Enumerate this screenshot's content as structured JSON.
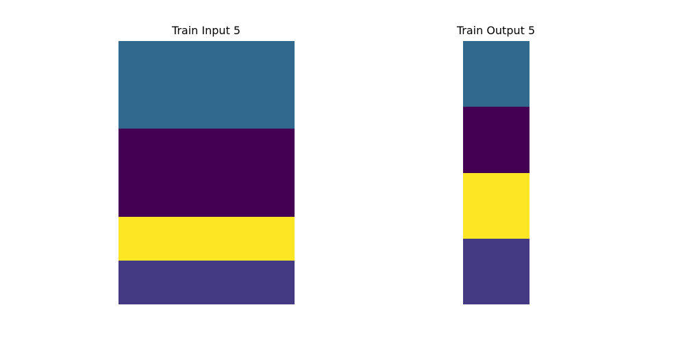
{
  "panels": {
    "left": {
      "title": "Train Input 5",
      "rows": [
        [
          "#31688e",
          "#31688e",
          "#31688e",
          "#31688e"
        ],
        [
          "#31688e",
          "#31688e",
          "#31688e",
          "#31688e"
        ],
        [
          "#440154",
          "#440154",
          "#440154",
          "#440154"
        ],
        [
          "#440154",
          "#440154",
          "#440154",
          "#440154"
        ],
        [
          "#fde725",
          "#fde725",
          "#fde725",
          "#fde725"
        ],
        [
          "#443983",
          "#443983",
          "#443983",
          "#443983"
        ]
      ]
    },
    "right": {
      "title": "Train Output 5",
      "rows": [
        [
          "#31688e"
        ],
        [
          "#440154"
        ],
        [
          "#fde725"
        ],
        [
          "#443983"
        ]
      ]
    }
  }
}
